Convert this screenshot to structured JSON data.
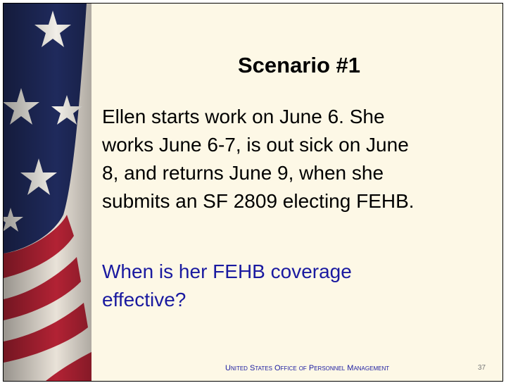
{
  "slide": {
    "title": "Scenario #1",
    "body_lines": [
      "Ellen starts work on June 6.  She",
      "works June 6-7, is out sick on June",
      "8, and returns June 9, when she",
      "submits an SF 2809 electing FEHB."
    ],
    "question_lines": [
      "When is her FEHB coverage",
      "effective?"
    ],
    "footer": "United States Office of Personnel Management",
    "page_number": 37
  }
}
